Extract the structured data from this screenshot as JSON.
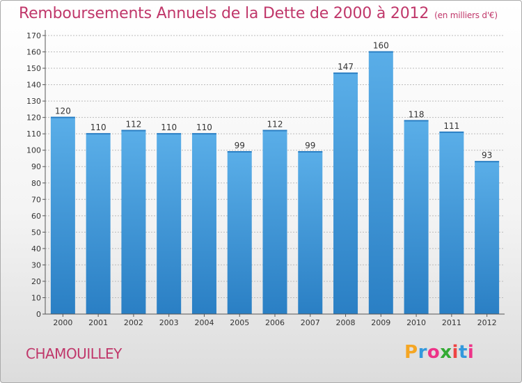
{
  "title": "Remboursements Annuels de la Dette de 2000 à 2012",
  "unit": "(en milliers d'€)",
  "city": "CHAMOUILLEY",
  "logo": {
    "letters": [
      "P",
      "r",
      "o",
      "x",
      "i",
      "t",
      "i"
    ],
    "colors": [
      "#f5a623",
      "#3399dd",
      "#ee3388",
      "#33aa33",
      "#ee4444",
      "#3399dd",
      "#ee3388"
    ]
  },
  "colors": {
    "bar_light": "#5aaee8",
    "bar_dark": "#2a7fc4",
    "grid": "#bbbbbb",
    "text": "#333333"
  },
  "chart_data": {
    "type": "bar",
    "title": "Remboursements Annuels de la Dette de 2000 à 2012",
    "categories": [
      "2000",
      "2001",
      "2002",
      "2003",
      "2004",
      "2005",
      "2006",
      "2007",
      "2008",
      "2009",
      "2010",
      "2011",
      "2012"
    ],
    "values": [
      120,
      110,
      112,
      110,
      110,
      99,
      112,
      99,
      147,
      160,
      118,
      111,
      93
    ],
    "ylim": [
      0,
      170
    ],
    "yticks": [
      0,
      10,
      20,
      30,
      40,
      50,
      60,
      70,
      80,
      90,
      100,
      110,
      120,
      130,
      140,
      150,
      160,
      170
    ],
    "grid": true,
    "xlabel": "",
    "ylabel": ""
  }
}
